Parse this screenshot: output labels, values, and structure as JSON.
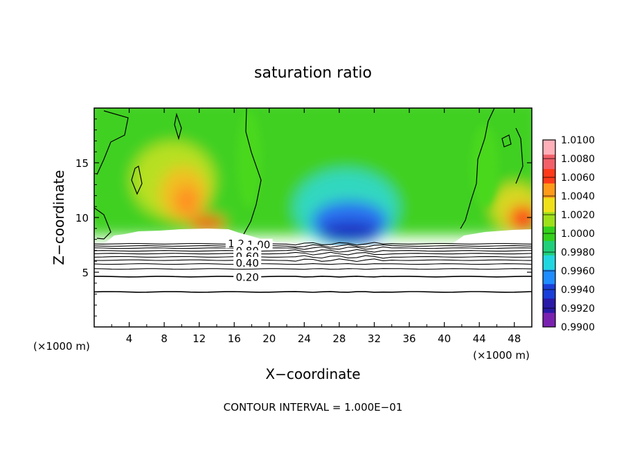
{
  "chart_data": {
    "type": "heatmap",
    "title": "saturation ratio",
    "xlabel": "X−coordinate",
    "ylabel": "Z−coordinate",
    "x_unit_left": "(×1000 m)",
    "x_unit_right": "(×1000 m)",
    "xlim": [
      0,
      50
    ],
    "ylim": [
      0,
      20
    ],
    "x_ticks": [
      4,
      8,
      12,
      16,
      20,
      24,
      28,
      32,
      36,
      40,
      44,
      48
    ],
    "y_ticks": [
      5,
      10,
      15
    ],
    "footer": "CONTOUR INTERVAL = 1.000E−01",
    "colorbar": {
      "min": 0.99,
      "max": 1.01,
      "labels": [
        "1.0100",
        "1.0080",
        "1.0060",
        "1.0040",
        "1.0020",
        "1.0000",
        "0.9980",
        "0.9960",
        "0.9940",
        "0.9920",
        "0.9900"
      ],
      "colors": [
        "#7a22b0",
        "#2a1aa8",
        "#1a3fd8",
        "#1f8cff",
        "#22d6e0",
        "#1fcf7a",
        "#33d11a",
        "#9ee01a",
        "#f0e01a",
        "#ff9a1a",
        "#ff3a1a",
        "#f2606a",
        "#ffb0b8"
      ]
    },
    "contour_labels": [
      {
        "text": "1.20",
        "x": 16.6,
        "y": 7.65
      },
      {
        "text": "1.00",
        "x": 18.8,
        "y": 7.55
      },
      {
        "text": "0.80",
        "x": 17.5,
        "y": 7.0
      },
      {
        "text": "0.60",
        "x": 17.5,
        "y": 6.5
      },
      {
        "text": "0.40",
        "x": 17.5,
        "y": 5.9
      },
      {
        "text": "0.20",
        "x": 17.5,
        "y": 4.6
      }
    ],
    "stable_contours_z": [
      3.2,
      4.6,
      5.3,
      5.75,
      6.1,
      6.4,
      6.7,
      6.95,
      7.2,
      7.4,
      7.6
    ]
  }
}
